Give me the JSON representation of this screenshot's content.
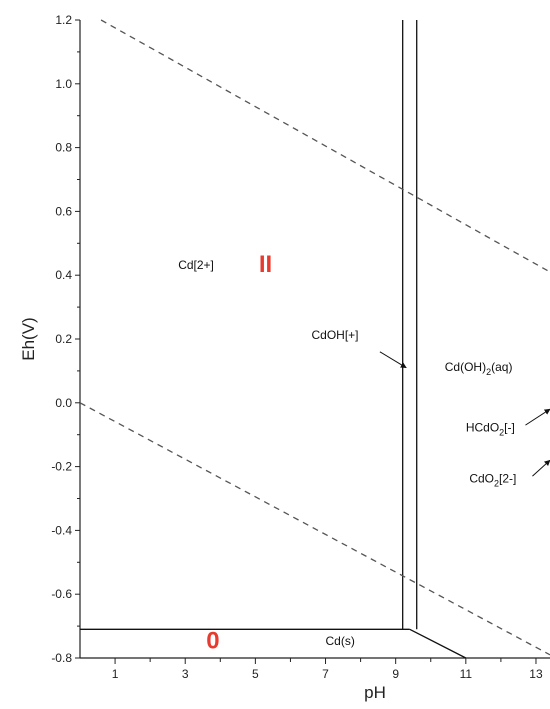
{
  "chart_data": {
    "type": "line",
    "title": "",
    "xlabel": "pH",
    "ylabel": "Eh(V)",
    "xlim": [
      0,
      13.4
    ],
    "ylim": [
      -0.8,
      1.2
    ],
    "x_ticks": [
      1,
      3,
      5,
      7,
      9,
      11,
      13
    ],
    "x_tick_labels": [
      "1",
      "3",
      "5",
      "7",
      "9",
      "11",
      "13"
    ],
    "y_ticks": [
      -0.8,
      -0.6,
      -0.4,
      -0.2,
      0.0,
      0.2,
      0.4,
      0.6,
      0.8,
      1.0,
      1.2
    ],
    "y_tick_labels": [
      "-0.8",
      "-0.6",
      "-0.4",
      "-0.2",
      "0.0",
      "0.2",
      "0.4",
      "0.6",
      "0.8",
      "1.0",
      "1.2"
    ],
    "boundaries": [
      {
        "id": "cd2-cdoh-boundary",
        "points": [
          [
            9.2,
            1.2
          ],
          [
            9.2,
            -0.71
          ]
        ]
      },
      {
        "id": "cdoh-cdoh2-boundary",
        "points": [
          [
            9.6,
            1.2
          ],
          [
            9.6,
            -0.71
          ]
        ]
      },
      {
        "id": "cd2-cds-boundary",
        "points": [
          [
            0,
            -0.71
          ],
          [
            9.4,
            -0.71
          ]
        ]
      },
      {
        "id": "cdoh2-cds-boundary",
        "points": [
          [
            9.4,
            -0.71
          ],
          [
            11.0,
            -0.8
          ]
        ]
      }
    ],
    "water_lines": [
      {
        "id": "o2-h2o-line",
        "points": [
          [
            0.6,
            1.2
          ],
          [
            13.4,
            0.41
          ]
        ]
      },
      {
        "id": "h2o-h2-line",
        "points": [
          [
            0,
            0.0
          ],
          [
            13.4,
            -0.79
          ]
        ]
      }
    ],
    "species_labels": [
      {
        "id": "cd2plus",
        "main": "Cd[2+]",
        "x": 2.8,
        "y": 0.42
      },
      {
        "id": "cdohplus",
        "main": "CdOH[+]",
        "x": 6.6,
        "y": 0.2
      },
      {
        "id": "cdoh2aq",
        "main": "Cd(OH)",
        "sub": "2",
        "tail": "(aq)",
        "x": 10.4,
        "y": 0.1
      },
      {
        "id": "hcdo2",
        "main": "HCdO",
        "sub": "2",
        "tail": "[-]",
        "x": 11.0,
        "y": -0.09
      },
      {
        "id": "cdo2",
        "main": "CdO",
        "sub": "2",
        "tail": "[2-]",
        "x": 11.1,
        "y": -0.25
      },
      {
        "id": "cds",
        "main": "Cd(s)",
        "x": 7.0,
        "y": -0.76
      }
    ],
    "arrows": [
      {
        "id": "cdohplus-arrow",
        "from": [
          8.55,
          0.16
        ],
        "to": [
          9.3,
          0.11
        ]
      },
      {
        "id": "hcdo2-arrow",
        "from": [
          12.7,
          -0.07
        ],
        "to": [
          13.4,
          -0.02
        ]
      },
      {
        "id": "cdo2-arrow",
        "from": [
          12.9,
          -0.23
        ],
        "to": [
          13.4,
          -0.18
        ]
      }
    ],
    "oxidation_labels": [
      {
        "id": "ox-two",
        "text": "II",
        "x": 5.1,
        "y": 0.41,
        "color": "#e63b2e"
      },
      {
        "id": "ox-zero",
        "text": "0",
        "x": 3.6,
        "y": -0.77,
        "color": "#e63b2e"
      }
    ],
    "grid": false,
    "legend": "none",
    "line_color": "#111111",
    "water_line_color": "#555555"
  }
}
